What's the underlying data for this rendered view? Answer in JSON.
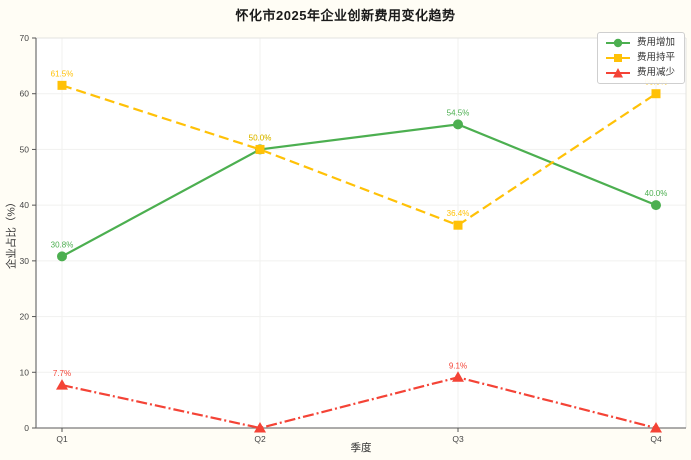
{
  "title": "怀化市2025年企业创新费用变化趋势",
  "chart_data": {
    "type": "line",
    "categories": [
      "Q1",
      "Q2",
      "Q3",
      "Q4"
    ],
    "series": [
      {
        "name": "费用增加",
        "color": "#4caf50",
        "linestyle": "solid",
        "marker": "circle",
        "values": [
          30.8,
          50.0,
          54.5,
          40.0
        ],
        "labels": [
          "30.8%",
          "50.0%",
          "54.5%",
          "40.0%"
        ]
      },
      {
        "name": "费用持平",
        "color": "#ffc107",
        "linestyle": "dashed",
        "marker": "square",
        "values": [
          61.5,
          50.0,
          36.4,
          60.0
        ],
        "labels": [
          "61.5%",
          "50.0%",
          "36.4%",
          "60.0%"
        ]
      },
      {
        "name": "费用减少",
        "color": "#f44336",
        "linestyle": "dashdot",
        "marker": "triangle",
        "values": [
          7.7,
          0.0,
          9.1,
          0.0
        ],
        "labels": [
          "7.7%",
          "",
          "9.1%",
          ""
        ]
      }
    ],
    "xlabel": "季度",
    "ylabel": "企业占比（%）",
    "ylim": [
      0,
      70
    ],
    "yticks": [
      0,
      10,
      20,
      30,
      40,
      50,
      60,
      70
    ],
    "grid": true,
    "legend_position": "upper right"
  }
}
